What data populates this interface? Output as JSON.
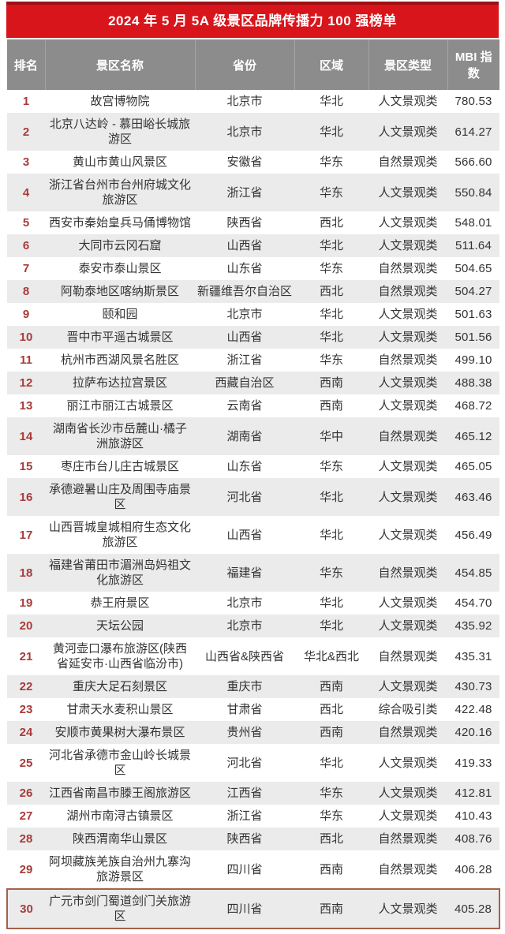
{
  "chart_data": {
    "type": "table",
    "title": "2024 年 5 月 5A 级景区品牌传播力 100 强榜单",
    "columns": [
      "排名",
      "景区名称",
      "省份",
      "区域",
      "景区类型",
      "MBI 指数"
    ],
    "highlighted_rank": "30",
    "rows": [
      {
        "rank": "1",
        "name": "故宫博物院",
        "province": "北京市",
        "region": "华北",
        "type": "人文景观类",
        "mbi": "780.53"
      },
      {
        "rank": "2",
        "name": "北京八达岭 - 慕田峪长城旅游区",
        "province": "北京市",
        "region": "华北",
        "type": "人文景观类",
        "mbi": "614.27"
      },
      {
        "rank": "3",
        "name": "黄山市黄山风景区",
        "province": "安徽省",
        "region": "华东",
        "type": "自然景观类",
        "mbi": "566.60"
      },
      {
        "rank": "4",
        "name": "浙江省台州市台州府城文化旅游区",
        "province": "浙江省",
        "region": "华东",
        "type": "人文景观类",
        "mbi": "550.84"
      },
      {
        "rank": "5",
        "name": "西安市秦始皇兵马俑博物馆",
        "province": "陕西省",
        "region": "西北",
        "type": "人文景观类",
        "mbi": "548.01"
      },
      {
        "rank": "6",
        "name": "大同市云冈石窟",
        "province": "山西省",
        "region": "华北",
        "type": "人文景观类",
        "mbi": "511.64"
      },
      {
        "rank": "7",
        "name": "泰安市泰山景区",
        "province": "山东省",
        "region": "华东",
        "type": "自然景观类",
        "mbi": "504.65"
      },
      {
        "rank": "8",
        "name": "阿勒泰地区喀纳斯景区",
        "province": "新疆维吾尔自治区",
        "region": "西北",
        "type": "自然景观类",
        "mbi": "504.27"
      },
      {
        "rank": "9",
        "name": "颐和园",
        "province": "北京市",
        "region": "华北",
        "type": "人文景观类",
        "mbi": "501.63"
      },
      {
        "rank": "10",
        "name": "晋中市平遥古城景区",
        "province": "山西省",
        "region": "华北",
        "type": "人文景观类",
        "mbi": "501.56"
      },
      {
        "rank": "11",
        "name": "杭州市西湖风景名胜区",
        "province": "浙江省",
        "region": "华东",
        "type": "自然景观类",
        "mbi": "499.10"
      },
      {
        "rank": "12",
        "name": "拉萨布达拉宫景区",
        "province": "西藏自治区",
        "region": "西南",
        "type": "人文景观类",
        "mbi": "488.38"
      },
      {
        "rank": "13",
        "name": "丽江市丽江古城景区",
        "province": "云南省",
        "region": "西南",
        "type": "人文景观类",
        "mbi": "468.72"
      },
      {
        "rank": "14",
        "name": "湖南省长沙市岳麓山·橘子洲旅游区",
        "province": "湖南省",
        "region": "华中",
        "type": "自然景观类",
        "mbi": "465.12"
      },
      {
        "rank": "15",
        "name": "枣庄市台儿庄古城景区",
        "province": "山东省",
        "region": "华东",
        "type": "人文景观类",
        "mbi": "465.05"
      },
      {
        "rank": "16",
        "name": "承德避暑山庄及周围寺庙景区",
        "province": "河北省",
        "region": "华北",
        "type": "人文景观类",
        "mbi": "463.46"
      },
      {
        "rank": "17",
        "name": "山西晋城皇城相府生态文化旅游区",
        "province": "山西省",
        "region": "华北",
        "type": "人文景观类",
        "mbi": "456.49"
      },
      {
        "rank": "18",
        "name": "福建省莆田市湄洲岛妈祖文化旅游区",
        "province": "福建省",
        "region": "华东",
        "type": "自然景观类",
        "mbi": "454.85"
      },
      {
        "rank": "19",
        "name": "恭王府景区",
        "province": "北京市",
        "region": "华北",
        "type": "人文景观类",
        "mbi": "454.70"
      },
      {
        "rank": "20",
        "name": "天坛公园",
        "province": "北京市",
        "region": "华北",
        "type": "人文景观类",
        "mbi": "435.92"
      },
      {
        "rank": "21",
        "name": "黄河壶口瀑布旅游区(陕西省延安市·山西省临汾市)",
        "province": "山西省&陕西省",
        "region": "华北&西北",
        "type": "自然景观类",
        "mbi": "435.31"
      },
      {
        "rank": "22",
        "name": "重庆大足石刻景区",
        "province": "重庆市",
        "region": "西南",
        "type": "人文景观类",
        "mbi": "430.73"
      },
      {
        "rank": "23",
        "name": "甘肃天水麦积山景区",
        "province": "甘肃省",
        "region": "西北",
        "type": "综合吸引类",
        "mbi": "422.48"
      },
      {
        "rank": "24",
        "name": "安顺市黄果树大瀑布景区",
        "province": "贵州省",
        "region": "西南",
        "type": "自然景观类",
        "mbi": "420.16"
      },
      {
        "rank": "25",
        "name": "河北省承德市金山岭长城景区",
        "province": "河北省",
        "region": "华北",
        "type": "人文景观类",
        "mbi": "419.33"
      },
      {
        "rank": "26",
        "name": "江西省南昌市滕王阁旅游区",
        "province": "江西省",
        "region": "华东",
        "type": "人文景观类",
        "mbi": "412.81"
      },
      {
        "rank": "27",
        "name": "湖州市南浔古镇景区",
        "province": "浙江省",
        "region": "华东",
        "type": "人文景观类",
        "mbi": "410.43"
      },
      {
        "rank": "28",
        "name": "陕西渭南华山景区",
        "province": "陕西省",
        "region": "西北",
        "type": "自然景观类",
        "mbi": "408.76"
      },
      {
        "rank": "29",
        "name": "阿坝藏族羌族自治州九寨沟旅游景区",
        "province": "四川省",
        "region": "西南",
        "type": "自然景观类",
        "mbi": "406.28"
      },
      {
        "rank": "30",
        "name": "广元市剑门蜀道剑门关旅游区",
        "province": "四川省",
        "region": "西南",
        "type": "人文景观类",
        "mbi": "405.28"
      }
    ]
  },
  "colors": {
    "title_bar_bg": "#d9151c",
    "title_bar_top_edge": "#9e1014",
    "header_bg": "#8c8c8c",
    "rank_text": "#a93a3a",
    "body_text": "#333333",
    "row_alt_bg": "#ebebeb",
    "highlight_border": "#a5604a"
  }
}
